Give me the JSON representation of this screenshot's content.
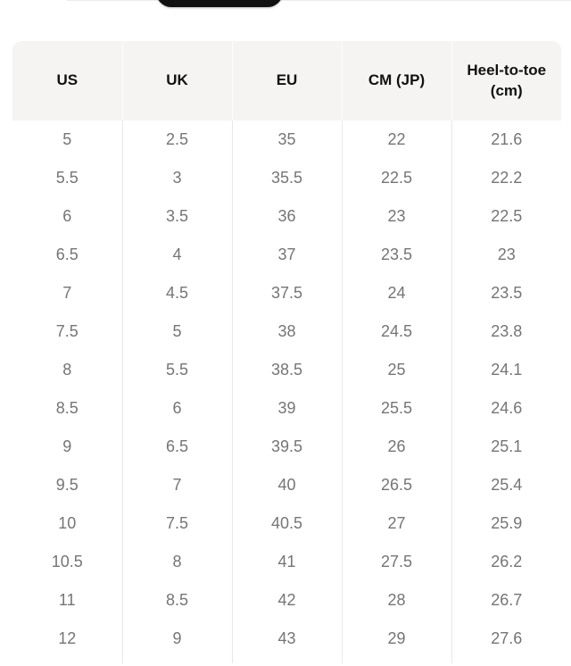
{
  "top_bar": {
    "pill_color": "#111111"
  },
  "table": {
    "columns": [
      "US",
      "UK",
      "EU",
      "CM (JP)",
      "Heel-to-toe (cm)"
    ],
    "rows": [
      [
        "5",
        "2.5",
        "35",
        "22",
        "21.6"
      ],
      [
        "5.5",
        "3",
        "35.5",
        "22.5",
        "22.2"
      ],
      [
        "6",
        "3.5",
        "36",
        "23",
        "22.5"
      ],
      [
        "6.5",
        "4",
        "37",
        "23.5",
        "23"
      ],
      [
        "7",
        "4.5",
        "37.5",
        "24",
        "23.5"
      ],
      [
        "7.5",
        "5",
        "38",
        "24.5",
        "23.8"
      ],
      [
        "8",
        "5.5",
        "38.5",
        "25",
        "24.1"
      ],
      [
        "8.5",
        "6",
        "39",
        "25.5",
        "24.6"
      ],
      [
        "9",
        "6.5",
        "39.5",
        "26",
        "25.1"
      ],
      [
        "9.5",
        "7",
        "40",
        "26.5",
        "25.4"
      ],
      [
        "10",
        "7.5",
        "40.5",
        "27",
        "25.9"
      ],
      [
        "10.5",
        "8",
        "41",
        "27.5",
        "26.2"
      ],
      [
        "11",
        "8.5",
        "42",
        "28",
        "26.7"
      ],
      [
        "12",
        "9",
        "43",
        "29",
        "27.6"
      ]
    ],
    "colors": {
      "header_bg": "#f5f4f2",
      "header_text": "#111111",
      "cell_text": "#757575",
      "divider": "#e7e7e7"
    }
  }
}
